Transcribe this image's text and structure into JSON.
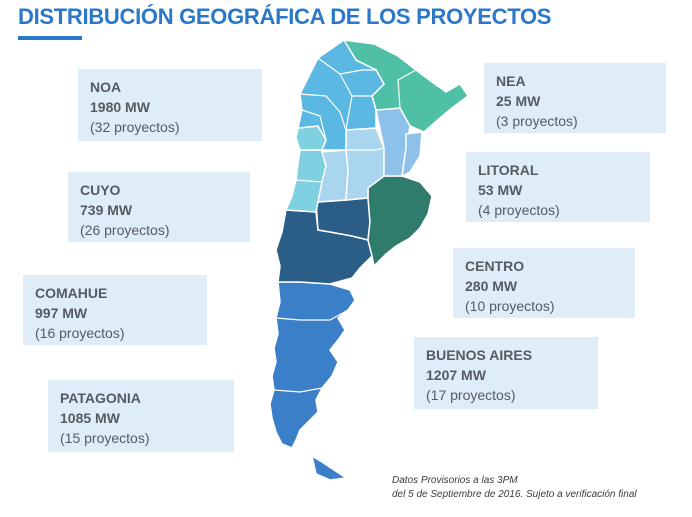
{
  "title": "DISTRIBUCIÓN GEOGRÁFICA DE LOS PROYECTOS",
  "colors": {
    "accent": "#2b78c9",
    "box_bg": "#deedf7",
    "noa": "#5bb8e3",
    "nea": "#4fbfa5",
    "cuyo": "#7fd0e0",
    "litoral": "#8ec1ea",
    "centro": "#a9d6ee",
    "comahue": "#2a5e86",
    "buenos_aires": "#2f7b6c",
    "patagonia": "#3a7fc8"
  },
  "regions": [
    {
      "id": "noa",
      "name": "NOA",
      "mw": "1980 MW",
      "projects": "(32 proyectos)"
    },
    {
      "id": "nea",
      "name": "NEA",
      "mw": "25 MW",
      "projects": "(3 proyectos)"
    },
    {
      "id": "cuyo",
      "name": "CUYO",
      "mw": "739 MW",
      "projects": "(26 proyectos)"
    },
    {
      "id": "litoral",
      "name": "LITORAL",
      "mw": "53 MW",
      "projects": "(4 proyectos)"
    },
    {
      "id": "comahue",
      "name": "COMAHUE",
      "mw": "997 MW",
      "projects": "(16 proyectos)"
    },
    {
      "id": "centro",
      "name": "CENTRO",
      "mw": "280 MW",
      "projects": "(10 proyectos)"
    },
    {
      "id": "buenos_aires",
      "name": "BUENOS AIRES",
      "mw": "1207 MW",
      "projects": "(17 proyectos)"
    },
    {
      "id": "patagonia",
      "name": "PATAGONIA",
      "mw": "1085 MW",
      "projects": "(15 proyectos)"
    }
  ],
  "footnote": {
    "line1": "Datos Provisorios a las 3PM",
    "line2": "del 5 de Septiembre de 2016. Sujeto a verificación final"
  }
}
